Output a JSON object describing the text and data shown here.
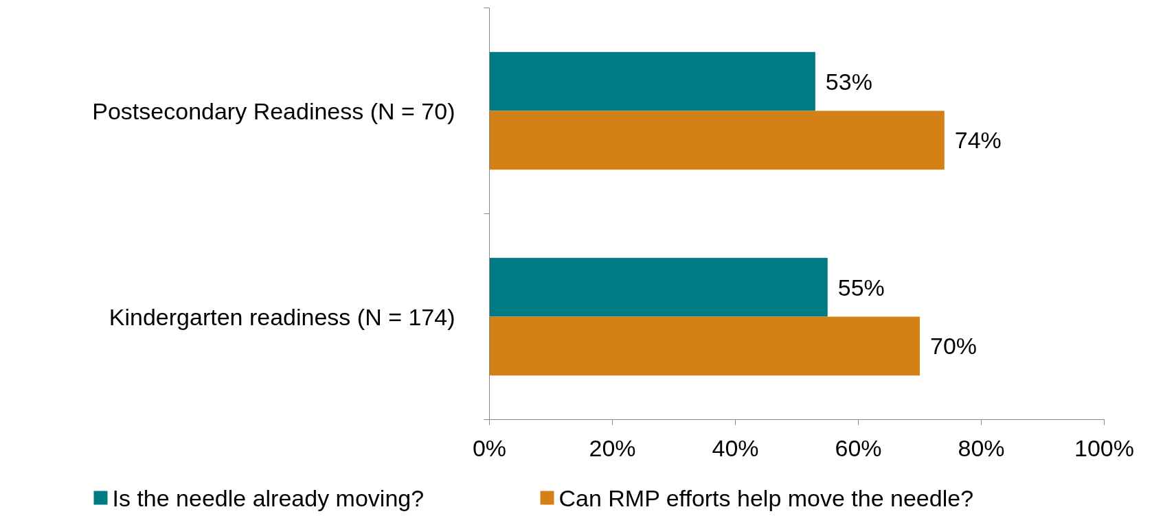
{
  "chart_data": {
    "type": "bar",
    "orientation": "horizontal",
    "categories": [
      "Postsecondary Readiness (N = 70)",
      "Kindergarten readiness (N = 174)"
    ],
    "series": [
      {
        "name": "Is the needle already moving?",
        "color": "#007b85",
        "values": [
          53,
          55
        ],
        "value_labels": [
          "53%",
          "55%"
        ]
      },
      {
        "name": "Can RMP efforts help move the needle?",
        "color": "#d38117",
        "values": [
          74,
          70
        ],
        "value_labels": [
          "74%",
          "70%"
        ]
      }
    ],
    "xlim": [
      0,
      100
    ],
    "xticks": [
      {
        "value": 0,
        "label": "0%"
      },
      {
        "value": 20,
        "label": "20%"
      },
      {
        "value": 40,
        "label": "40%"
      },
      {
        "value": 60,
        "label": "60%"
      },
      {
        "value": 80,
        "label": "80%"
      },
      {
        "value": 100,
        "label": "100%"
      }
    ],
    "grid": false,
    "legend": "bottom"
  }
}
